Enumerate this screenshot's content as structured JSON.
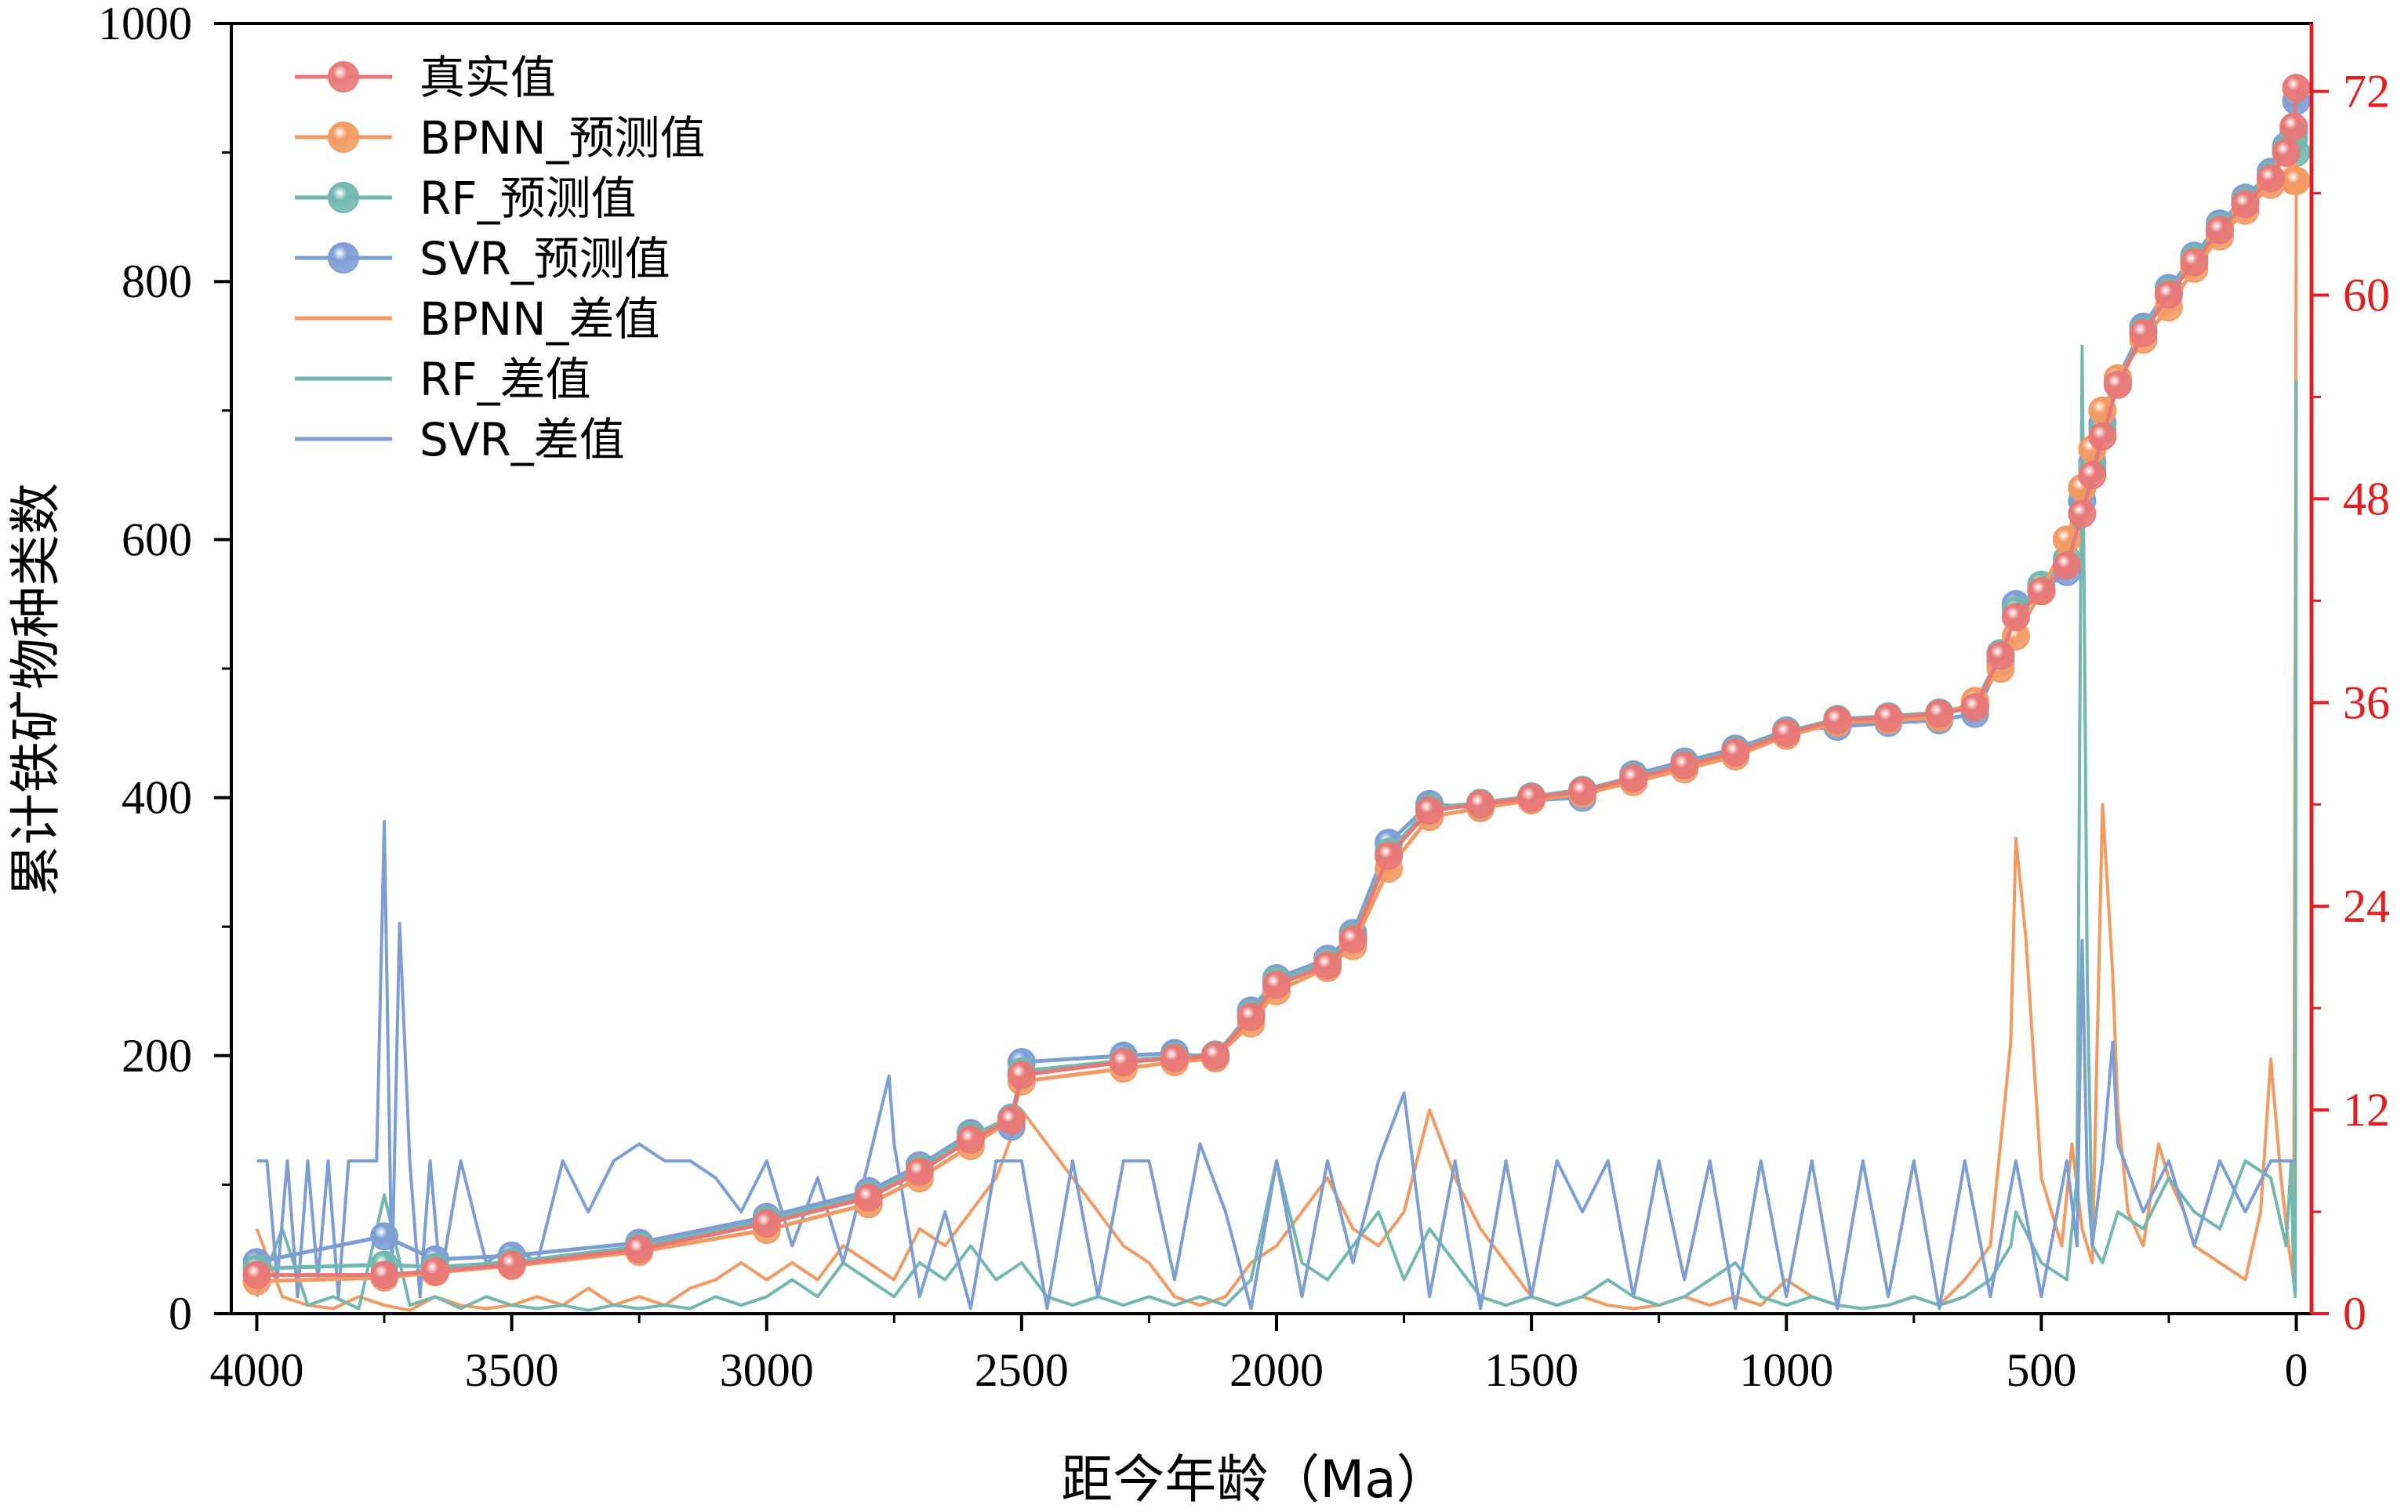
{
  "chart_data": {
    "type": "line",
    "xlabel": "距今年龄（Ma）",
    "ylabel": "累计铁矿物种类数",
    "ylabel_right": "",
    "xlim": [
      4050,
      -30
    ],
    "ylim": [
      0,
      1000
    ],
    "ylim_right": [
      0,
      76
    ],
    "x_ticks": [
      4000,
      3500,
      3000,
      2500,
      2000,
      1500,
      1000,
      500,
      0
    ],
    "y_ticks": [
      0,
      200,
      400,
      600,
      800,
      1000
    ],
    "y_ticks_right": [
      0,
      12,
      24,
      36,
      48,
      60,
      72
    ],
    "legend_position": "top-left",
    "colors": {
      "true": "#e87878",
      "bpnn": "#f39a62",
      "rf": "#72b8b0",
      "svr": "#7d9ed4",
      "right_axis": "#e02020"
    },
    "series": [
      {
        "name": "真实值",
        "axis": "left",
        "style": "line-marker",
        "x": [
          4000,
          3750,
          3650,
          3500,
          3250,
          3000,
          2800,
          2700,
          2600,
          2520,
          2500,
          2300,
          2200,
          2120,
          2050,
          2000,
          1900,
          1850,
          1780,
          1700,
          1600,
          1500,
          1400,
          1300,
          1200,
          1100,
          1000,
          900,
          800,
          700,
          630,
          580,
          550,
          500,
          450,
          420,
          400,
          380,
          350,
          300,
          250,
          200,
          150,
          100,
          50,
          20,
          5,
          0
        ],
        "values": [
          30,
          30,
          33,
          38,
          50,
          70,
          90,
          110,
          135,
          150,
          185,
          195,
          198,
          200,
          230,
          255,
          270,
          290,
          355,
          390,
          395,
          400,
          405,
          415,
          425,
          435,
          450,
          460,
          462,
          465,
          470,
          510,
          540,
          560,
          580,
          620,
          650,
          680,
          720,
          760,
          790,
          815,
          840,
          860,
          880,
          900,
          920,
          950
        ]
      },
      {
        "name": "BPNN_预测值",
        "axis": "left",
        "style": "line-marker",
        "x": [
          4000,
          3750,
          3650,
          3500,
          3250,
          3000,
          2800,
          2700,
          2600,
          2520,
          2500,
          2300,
          2200,
          2120,
          2050,
          2000,
          1900,
          1850,
          1780,
          1700,
          1600,
          1500,
          1400,
          1300,
          1200,
          1100,
          1000,
          900,
          800,
          700,
          630,
          580,
          550,
          500,
          450,
          420,
          400,
          380,
          350,
          300,
          250,
          200,
          150,
          100,
          50,
          20,
          5,
          0
        ],
        "values": [
          25,
          28,
          32,
          37,
          48,
          65,
          85,
          105,
          130,
          150,
          180,
          190,
          195,
          198,
          225,
          250,
          268,
          285,
          345,
          385,
          392,
          398,
          403,
          412,
          422,
          432,
          448,
          458,
          460,
          462,
          475,
          500,
          525,
          560,
          600,
          640,
          670,
          700,
          725,
          755,
          780,
          810,
          835,
          855,
          875,
          885,
          878,
          878
        ]
      },
      {
        "name": "RF_预测值",
        "axis": "left",
        "style": "line-marker",
        "x": [
          4000,
          3750,
          3650,
          3500,
          3250,
          3000,
          2800,
          2700,
          2600,
          2520,
          2500,
          2300,
          2200,
          2120,
          2050,
          2000,
          1900,
          1850,
          1780,
          1700,
          1600,
          1500,
          1400,
          1300,
          1200,
          1100,
          1000,
          900,
          800,
          700,
          630,
          580,
          550,
          500,
          450,
          420,
          400,
          380,
          350,
          300,
          250,
          200,
          150,
          100,
          50,
          20,
          5,
          0
        ],
        "values": [
          35,
          38,
          36,
          40,
          52,
          72,
          92,
          112,
          138,
          152,
          188,
          196,
          199,
          201,
          232,
          258,
          272,
          292,
          358,
          392,
          396,
          401,
          406,
          416,
          426,
          436,
          451,
          461,
          463,
          466,
          472,
          512,
          545,
          565,
          585,
          640,
          655,
          685,
          722,
          762,
          792,
          818,
          842,
          862,
          882,
          902,
          910,
          900
        ]
      },
      {
        "name": "SVR_预测值",
        "axis": "left",
        "style": "line-marker",
        "x": [
          4000,
          3750,
          3650,
          3500,
          3250,
          3000,
          2800,
          2700,
          2600,
          2520,
          2500,
          2300,
          2200,
          2120,
          2050,
          2000,
          1900,
          1850,
          1780,
          1700,
          1600,
          1500,
          1400,
          1300,
          1200,
          1100,
          1000,
          900,
          800,
          700,
          630,
          580,
          550,
          500,
          450,
          420,
          400,
          380,
          350,
          300,
          250,
          200,
          150,
          100,
          50,
          20,
          5,
          0
        ],
        "values": [
          40,
          60,
          42,
          45,
          55,
          75,
          95,
          115,
          140,
          145,
          195,
          200,
          202,
          198,
          235,
          260,
          275,
          295,
          365,
          395,
          392,
          398,
          400,
          418,
          428,
          438,
          452,
          455,
          458,
          460,
          465,
          505,
          550,
          560,
          575,
          630,
          660,
          690,
          725,
          765,
          795,
          820,
          845,
          865,
          885,
          905,
          915,
          940
        ]
      },
      {
        "name": "BPNN_差值",
        "axis": "right",
        "style": "line",
        "x": [
          4000,
          3950,
          3900,
          3850,
          3800,
          3750,
          3700,
          3650,
          3600,
          3550,
          3500,
          3450,
          3400,
          3350,
          3300,
          3250,
          3200,
          3150,
          3100,
          3050,
          3000,
          2950,
          2900,
          2850,
          2800,
          2750,
          2700,
          2650,
          2600,
          2550,
          2500,
          2450,
          2400,
          2350,
          2300,
          2250,
          2200,
          2150,
          2100,
          2050,
          2000,
          1950,
          1900,
          1850,
          1800,
          1750,
          1700,
          1650,
          1600,
          1550,
          1500,
          1450,
          1400,
          1350,
          1300,
          1250,
          1200,
          1150,
          1100,
          1050,
          1000,
          950,
          900,
          850,
          800,
          750,
          700,
          650,
          600,
          560,
          550,
          530,
          500,
          480,
          460,
          440,
          420,
          400,
          380,
          360,
          350,
          330,
          300,
          270,
          250,
          220,
          200,
          150,
          100,
          70,
          50,
          30,
          15,
          5,
          0
        ],
        "values": [
          5,
          1,
          0.5,
          0.3,
          1,
          0.5,
          0.2,
          1,
          0.5,
          0.3,
          0.5,
          1,
          0.5,
          1.5,
          0.5,
          1,
          0.5,
          1.5,
          2,
          3,
          2,
          3,
          2,
          4,
          3,
          2,
          5,
          4,
          6,
          8,
          12,
          10,
          8,
          6,
          4,
          3,
          1,
          0.5,
          1,
          3,
          4,
          6,
          8,
          5,
          4,
          6,
          12,
          8,
          5,
          3,
          1,
          0.5,
          1,
          0.5,
          0.3,
          0.5,
          1,
          0.5,
          1,
          0.5,
          2,
          1,
          0.5,
          0.3,
          0.5,
          1,
          0.5,
          2,
          4,
          16,
          28,
          22,
          8,
          6,
          4,
          10,
          5,
          3,
          30,
          20,
          12,
          6,
          4,
          10,
          8,
          6,
          4,
          3,
          2,
          6,
          15,
          8,
          4,
          2,
          66
        ]
      },
      {
        "name": "RF_差值",
        "axis": "right",
        "style": "line",
        "x": [
          4000,
          3950,
          3900,
          3850,
          3800,
          3750,
          3700,
          3650,
          3600,
          3550,
          3500,
          3450,
          3400,
          3350,
          3300,
          3250,
          3200,
          3150,
          3100,
          3050,
          3000,
          2950,
          2900,
          2850,
          2800,
          2750,
          2700,
          2650,
          2600,
          2550,
          2500,
          2450,
          2400,
          2350,
          2300,
          2250,
          2200,
          2150,
          2100,
          2050,
          2000,
          1950,
          1900,
          1850,
          1800,
          1750,
          1700,
          1650,
          1600,
          1550,
          1500,
          1450,
          1400,
          1350,
          1300,
          1250,
          1200,
          1150,
          1100,
          1050,
          1000,
          950,
          900,
          850,
          800,
          750,
          700,
          650,
          600,
          560,
          550,
          500,
          450,
          430,
          420,
          410,
          400,
          380,
          350,
          300,
          250,
          200,
          150,
          100,
          50,
          20,
          10,
          5,
          2,
          0
        ],
        "values": [
          1,
          5,
          0.5,
          1,
          0.3,
          7,
          0.5,
          1,
          0.3,
          1,
          0.5,
          0.3,
          0.5,
          0.2,
          0.5,
          0.3,
          0.5,
          0.3,
          1,
          0.5,
          1,
          2,
          1,
          3,
          2,
          1,
          3,
          2,
          4,
          2,
          3,
          1,
          0.5,
          1,
          0.5,
          1,
          0.5,
          1,
          0.5,
          2,
          9,
          3,
          2,
          4,
          6,
          2,
          5,
          3,
          1,
          0.5,
          1,
          0.5,
          1,
          2,
          1,
          0.5,
          1,
          2,
          3,
          1,
          0.5,
          1,
          0.5,
          0.3,
          0.5,
          1,
          0.5,
          1,
          2,
          4,
          6,
          3,
          2,
          8,
          57,
          20,
          4,
          3,
          6,
          5,
          8,
          6,
          5,
          9,
          8,
          4,
          9,
          2,
          1,
          55
        ]
      },
      {
        "name": "SVR_差值",
        "axis": "right",
        "style": "line",
        "x": [
          4000,
          3980,
          3960,
          3940,
          3920,
          3900,
          3880,
          3860,
          3840,
          3820,
          3800,
          3780,
          3765,
          3750,
          3735,
          3720,
          3700,
          3680,
          3660,
          3640,
          3600,
          3550,
          3500,
          3450,
          3400,
          3350,
          3300,
          3250,
          3200,
          3150,
          3100,
          3050,
          3000,
          2950,
          2900,
          2850,
          2800,
          2760,
          2750,
          2700,
          2650,
          2600,
          2550,
          2500,
          2450,
          2400,
          2350,
          2300,
          2250,
          2200,
          2150,
          2100,
          2050,
          2000,
          1950,
          1900,
          1850,
          1800,
          1750,
          1700,
          1650,
          1600,
          1550,
          1500,
          1450,
          1400,
          1350,
          1300,
          1250,
          1200,
          1150,
          1100,
          1050,
          1000,
          950,
          900,
          850,
          800,
          750,
          700,
          650,
          600,
          550,
          500,
          450,
          430,
          420,
          410,
          400,
          380,
          360,
          350,
          300,
          250,
          200,
          150,
          100,
          50,
          20,
          5,
          0
        ],
        "values": [
          9,
          9,
          2,
          9,
          1,
          9,
          2,
          9,
          1,
          9,
          9,
          9,
          9,
          29,
          2,
          23,
          9,
          1,
          9,
          2,
          9,
          3,
          4,
          3,
          9,
          6,
          9,
          10,
          9,
          9,
          8,
          6,
          9,
          4,
          8,
          3,
          9,
          14,
          10,
          1,
          6,
          0.3,
          9,
          9,
          0.3,
          9,
          1,
          9,
          9,
          2,
          10,
          6,
          0.3,
          9,
          1,
          9,
          3,
          9,
          13,
          1,
          9,
          0.3,
          9,
          1,
          9,
          6,
          9,
          1,
          9,
          2,
          9,
          0.3,
          9,
          1,
          9,
          0.3,
          9,
          1,
          9,
          0.3,
          9,
          1,
          9,
          1,
          9,
          4,
          22,
          8,
          4,
          9,
          16,
          10,
          6,
          9,
          4,
          9,
          6,
          9,
          9,
          9,
          9
        ]
      }
    ]
  }
}
